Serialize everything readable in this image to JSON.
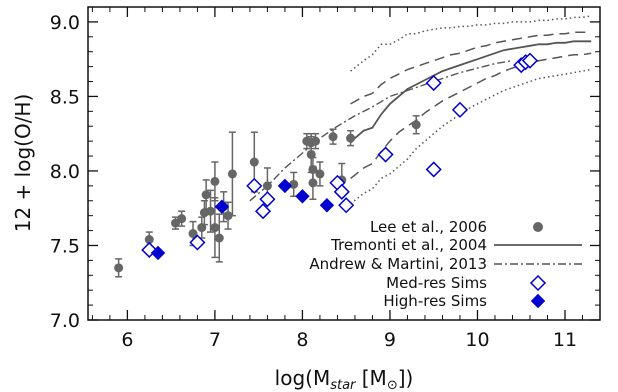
{
  "chart_data": {
    "type": "scatter",
    "xlabel_main": "log(M",
    "xlabel_sub": "star",
    "xlabel_tail": " [M",
    "xlabel_sun": "⊙",
    "xlabel_end": "])",
    "ylabel": "12 + log(O/H)",
    "xlim": [
      5.55,
      11.4
    ],
    "ylim": [
      7.0,
      9.1
    ],
    "x_ticks": [
      "6",
      "7",
      "8",
      "9",
      "10",
      "11"
    ],
    "x_tick_values": [
      6,
      7,
      8,
      9,
      10,
      11
    ],
    "y_ticks": [
      "7.0",
      "7.5",
      "8.0",
      "8.5",
      "9.0"
    ],
    "y_tick_values": [
      7.0,
      7.5,
      8.0,
      8.5,
      9.0
    ],
    "colors": {
      "lee": "#666666",
      "tremonti": "#555555",
      "andrew": "#555555",
      "sims": "#0000d0"
    },
    "legend": [
      {
        "label": "Lee et al., 2006",
        "marker": "filled-circle"
      },
      {
        "label": "Tremonti et al., 2004",
        "marker": "solid-line"
      },
      {
        "label": "Andrew & Martini, 2013",
        "marker": "dash-dot-line"
      },
      {
        "label": "Med-res Sims",
        "marker": "open-diamond"
      },
      {
        "label": "High-res Sims",
        "marker": "filled-diamond"
      }
    ],
    "series": [
      {
        "name": "Lee et al., 2006",
        "points": [
          {
            "x": 5.9,
            "y": 7.35,
            "err": 0.06
          },
          {
            "x": 6.25,
            "y": 7.54,
            "err": 0.05
          },
          {
            "x": 6.55,
            "y": 7.65,
            "err": 0.04
          },
          {
            "x": 6.62,
            "y": 7.68,
            "err": 0.05
          },
          {
            "x": 6.75,
            "y": 7.58,
            "err": 0.08
          },
          {
            "x": 6.85,
            "y": 7.62,
            "err": 0.07
          },
          {
            "x": 6.88,
            "y": 7.72,
            "err": 0.08
          },
          {
            "x": 6.9,
            "y": 7.84,
            "err": 0.1
          },
          {
            "x": 6.95,
            "y": 7.73,
            "err": 0.14
          },
          {
            "x": 7.0,
            "y": 7.62,
            "err": 0.2
          },
          {
            "x": 7.0,
            "y": 7.93,
            "err": 0.13
          },
          {
            "x": 7.05,
            "y": 7.55,
            "err": 0.16
          },
          {
            "x": 7.1,
            "y": 7.76,
            "err": 0.1
          },
          {
            "x": 7.15,
            "y": 7.7,
            "err": 0.09
          },
          {
            "x": 7.2,
            "y": 7.98,
            "err": 0.28
          },
          {
            "x": 7.45,
            "y": 8.06,
            "err": 0.2
          },
          {
            "x": 7.6,
            "y": 7.9,
            "err": 0.12
          },
          {
            "x": 7.9,
            "y": 7.91,
            "err": 0.08
          },
          {
            "x": 8.05,
            "y": 8.2,
            "err": 0.05
          },
          {
            "x": 8.1,
            "y": 8.19,
            "err": 0.06
          },
          {
            "x": 8.1,
            "y": 8.11,
            "err": 0.12
          },
          {
            "x": 8.12,
            "y": 8.01,
            "err": 0.08
          },
          {
            "x": 8.12,
            "y": 7.92,
            "err": 0.11
          },
          {
            "x": 8.15,
            "y": 8.2,
            "err": 0.05
          },
          {
            "x": 8.2,
            "y": 7.98,
            "err": 0.08
          },
          {
            "x": 8.35,
            "y": 8.23,
            "err": 0.05
          },
          {
            "x": 8.45,
            "y": 7.94,
            "err": 0.11
          },
          {
            "x": 8.55,
            "y": 8.22,
            "err": 0.05
          },
          {
            "x": 9.3,
            "y": 8.31,
            "err": 0.06
          }
        ]
      },
      {
        "name": "Tremonti et al., 2004",
        "median": [
          [
            8.55,
            8.19
          ],
          [
            8.6,
            8.22
          ],
          [
            8.7,
            8.27
          ],
          [
            8.8,
            8.29
          ],
          [
            8.9,
            8.38
          ],
          [
            9.0,
            8.45
          ],
          [
            9.1,
            8.5
          ],
          [
            9.2,
            8.55
          ],
          [
            9.3,
            8.58
          ],
          [
            9.4,
            8.61
          ],
          [
            9.5,
            8.64
          ],
          [
            9.6,
            8.67
          ],
          [
            9.7,
            8.69
          ],
          [
            9.8,
            8.71
          ],
          [
            9.9,
            8.73
          ],
          [
            10.0,
            8.75
          ],
          [
            10.1,
            8.77
          ],
          [
            10.2,
            8.79
          ],
          [
            10.3,
            8.81
          ],
          [
            10.4,
            8.82
          ],
          [
            10.5,
            8.83
          ],
          [
            10.6,
            8.84
          ],
          [
            10.7,
            8.85
          ],
          [
            10.8,
            8.85
          ],
          [
            10.9,
            8.86
          ],
          [
            11.0,
            8.86
          ],
          [
            11.1,
            8.87
          ],
          [
            11.2,
            8.87
          ],
          [
            11.3,
            8.87
          ]
        ],
        "p16": [
          [
            8.55,
            7.95
          ],
          [
            8.7,
            8.02
          ],
          [
            8.8,
            8.05
          ],
          [
            8.9,
            8.13
          ],
          [
            9.0,
            8.2
          ],
          [
            9.1,
            8.26
          ],
          [
            9.2,
            8.3
          ],
          [
            9.3,
            8.34
          ],
          [
            9.4,
            8.39
          ],
          [
            9.5,
            8.43
          ],
          [
            9.6,
            8.47
          ],
          [
            9.7,
            8.5
          ],
          [
            9.8,
            8.53
          ],
          [
            9.9,
            8.56
          ],
          [
            10.0,
            8.59
          ],
          [
            10.1,
            8.62
          ],
          [
            10.2,
            8.64
          ],
          [
            10.3,
            8.67
          ],
          [
            10.4,
            8.69
          ],
          [
            10.5,
            8.71
          ],
          [
            10.6,
            8.72
          ],
          [
            10.7,
            8.74
          ],
          [
            10.8,
            8.75
          ],
          [
            10.9,
            8.76
          ],
          [
            11.0,
            8.77
          ],
          [
            11.1,
            8.78
          ],
          [
            11.2,
            8.78
          ],
          [
            11.3,
            8.79
          ]
        ],
        "p84": [
          [
            8.55,
            8.45
          ],
          [
            8.7,
            8.5
          ],
          [
            8.8,
            8.52
          ],
          [
            8.9,
            8.58
          ],
          [
            9.0,
            8.62
          ],
          [
            9.1,
            8.65
          ],
          [
            9.2,
            8.68
          ],
          [
            9.3,
            8.7
          ],
          [
            9.4,
            8.72
          ],
          [
            9.5,
            8.74
          ],
          [
            9.6,
            8.76
          ],
          [
            9.7,
            8.78
          ],
          [
            9.8,
            8.79
          ],
          [
            9.9,
            8.81
          ],
          [
            10.0,
            8.83
          ],
          [
            10.1,
            8.84
          ],
          [
            10.2,
            8.86
          ],
          [
            10.3,
            8.87
          ],
          [
            10.4,
            8.88
          ],
          [
            10.5,
            8.89
          ],
          [
            10.6,
            8.9
          ],
          [
            10.7,
            8.91
          ],
          [
            10.8,
            8.91
          ],
          [
            10.9,
            8.92
          ],
          [
            11.0,
            8.92
          ],
          [
            11.1,
            8.93
          ],
          [
            11.2,
            8.93
          ],
          [
            11.3,
            8.93
          ]
        ],
        "p2_5": [
          [
            8.55,
            7.78
          ],
          [
            8.7,
            7.85
          ],
          [
            8.8,
            7.88
          ],
          [
            8.9,
            7.95
          ],
          [
            9.0,
            7.98
          ],
          [
            9.1,
            8.03
          ],
          [
            9.2,
            8.08
          ],
          [
            9.3,
            8.15
          ],
          [
            9.4,
            8.2
          ],
          [
            9.5,
            8.25
          ],
          [
            9.6,
            8.3
          ],
          [
            9.7,
            8.34
          ],
          [
            9.8,
            8.38
          ],
          [
            9.9,
            8.42
          ],
          [
            10.0,
            8.45
          ],
          [
            10.1,
            8.48
          ],
          [
            10.2,
            8.51
          ],
          [
            10.3,
            8.54
          ],
          [
            10.4,
            8.56
          ],
          [
            10.5,
            8.58
          ],
          [
            10.6,
            8.6
          ],
          [
            10.7,
            8.62
          ],
          [
            10.8,
            8.63
          ],
          [
            10.9,
            8.64
          ],
          [
            11.0,
            8.65
          ],
          [
            11.1,
            8.66
          ],
          [
            11.2,
            8.67
          ],
          [
            11.3,
            8.68
          ]
        ],
        "p97_5": [
          [
            8.55,
            8.67
          ],
          [
            8.7,
            8.74
          ],
          [
            8.8,
            8.78
          ],
          [
            8.9,
            8.85
          ],
          [
            9.0,
            8.85
          ],
          [
            9.1,
            8.88
          ],
          [
            9.2,
            8.92
          ],
          [
            9.3,
            8.92
          ],
          [
            9.4,
            8.94
          ],
          [
            9.5,
            8.95
          ],
          [
            9.6,
            8.96
          ],
          [
            9.7,
            8.96
          ],
          [
            9.8,
            8.97
          ],
          [
            9.9,
            8.97
          ],
          [
            10.0,
            8.98
          ],
          [
            10.1,
            8.98
          ],
          [
            10.2,
            8.99
          ],
          [
            10.3,
            8.99
          ],
          [
            10.4,
            9.0
          ],
          [
            10.5,
            9.0
          ],
          [
            10.6,
            9.0
          ],
          [
            10.7,
            9.01
          ],
          [
            10.8,
            9.01
          ],
          [
            10.9,
            9.02
          ],
          [
            11.0,
            9.02
          ],
          [
            11.1,
            9.03
          ],
          [
            11.2,
            9.03
          ],
          [
            11.3,
            9.04
          ]
        ]
      },
      {
        "name": "Andrew & Martini, 2013",
        "points": [
          [
            7.4,
            7.8
          ],
          [
            7.6,
            7.9
          ],
          [
            7.8,
            8.02
          ],
          [
            8.0,
            8.12
          ],
          [
            8.2,
            8.22
          ],
          [
            8.4,
            8.3
          ],
          [
            8.6,
            8.37
          ],
          [
            8.8,
            8.43
          ],
          [
            9.0,
            8.5
          ],
          [
            9.2,
            8.54
          ],
          [
            9.4,
            8.58
          ],
          [
            9.6,
            8.62
          ],
          [
            9.8,
            8.66
          ],
          [
            10.0,
            8.69
          ],
          [
            10.2,
            8.72
          ],
          [
            10.4,
            8.74
          ]
        ]
      },
      {
        "name": "Med-res Sims",
        "points": [
          [
            6.25,
            7.47
          ],
          [
            6.8,
            7.52
          ],
          [
            7.45,
            7.9
          ],
          [
            7.55,
            7.73
          ],
          [
            7.6,
            7.81
          ],
          [
            8.4,
            7.92
          ],
          [
            8.45,
            7.86
          ],
          [
            8.5,
            7.77
          ],
          [
            8.95,
            8.11
          ],
          [
            9.5,
            8.59
          ],
          [
            9.5,
            8.01
          ],
          [
            9.8,
            8.41
          ],
          [
            10.5,
            8.71
          ],
          [
            10.55,
            8.73
          ],
          [
            10.6,
            8.74
          ]
        ]
      },
      {
        "name": "High-res Sims",
        "points": [
          [
            6.35,
            7.45
          ],
          [
            7.08,
            7.76
          ],
          [
            7.8,
            7.9
          ],
          [
            8.0,
            7.83
          ],
          [
            8.28,
            7.77
          ]
        ]
      }
    ]
  }
}
